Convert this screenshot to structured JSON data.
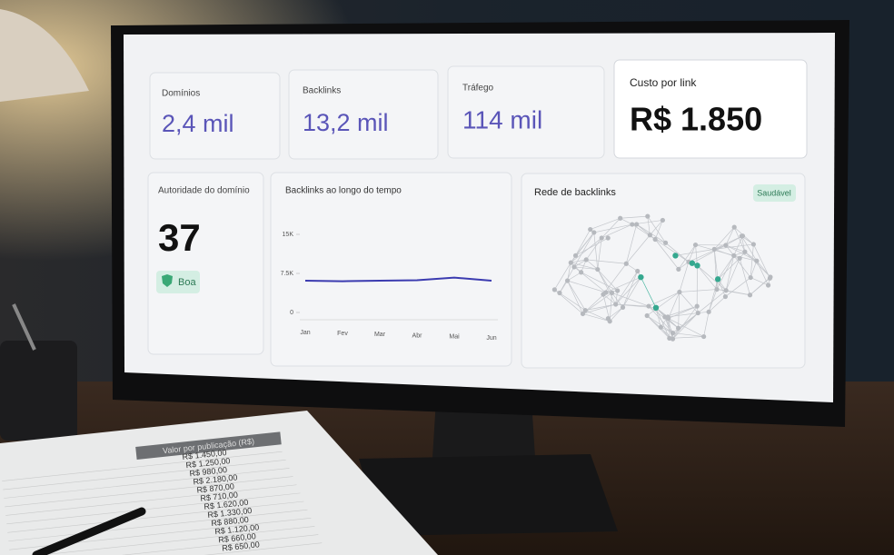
{
  "cards": [
    {
      "label": "Domínios",
      "value": "2,4 mil"
    },
    {
      "label": "Backlinks",
      "value": "13,2 mil"
    },
    {
      "label": "Tráfego",
      "value": "114 mil"
    },
    {
      "label": "Custo por link",
      "value": "R$ 1.850"
    }
  ],
  "authority": {
    "label": "Autoridade do domínio",
    "value": "37",
    "badge": "Boa"
  },
  "chart_data": {
    "type": "line",
    "title": "Backlinks ao longo do tempo",
    "categories": [
      "Jan",
      "Fev",
      "Mar",
      "Abr",
      "Mai",
      "Jun"
    ],
    "series": [
      {
        "name": "Backlinks",
        "color": "#3b3bb0",
        "values": [
          6100,
          6000,
          6100,
          6200,
          6700,
          6100
        ]
      }
    ],
    "ylim": [
      0,
      15000
    ],
    "yticks": [
      0,
      {
        "value": 7500,
        "label": "7.5K"
      },
      {
        "value": 15000,
        "label": "15K"
      }
    ]
  },
  "network": {
    "title": "Rede de backlinks",
    "badge": "Saudável"
  },
  "paper": {
    "header": "Valor por publicação (R$)",
    "rows": [
      "R$ 1.450,00",
      "R$ 1.250,00",
      "R$ 980,00",
      "R$ 2.180,00",
      "R$ 870,00",
      "R$ 710,00",
      "R$ 1.620,00",
      "R$ 1.330,00",
      "R$ 880,00",
      "R$ 1.120,00",
      "R$ 660,00",
      "R$ 650,00"
    ]
  }
}
